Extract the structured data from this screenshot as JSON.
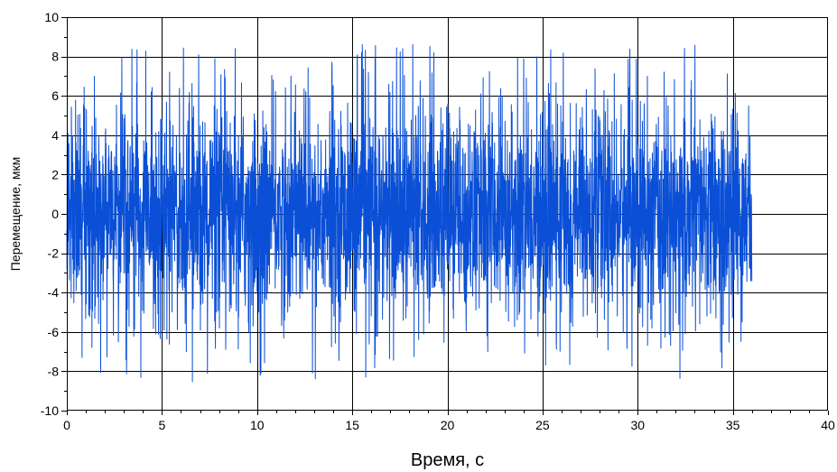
{
  "chart_data": {
    "type": "line",
    "title": "",
    "xlabel": "Время, с",
    "ylabel": "Перемещение, мкм",
    "xlim": [
      0,
      40
    ],
    "ylim": [
      -10,
      10
    ],
    "x_ticks": [
      "0",
      "5",
      "10",
      "15",
      "20",
      "25",
      "30",
      "35",
      "40"
    ],
    "y_ticks": [
      "10",
      "8",
      "6",
      "4",
      "2",
      "0",
      "-2",
      "-4",
      "-6",
      "-8",
      "-10"
    ],
    "grid": true,
    "legend": "none",
    "series": [
      {
        "color": "#0a4fd6",
        "x_range": [
          0,
          36
        ],
        "y_range": [
          -9.7,
          8.6
        ],
        "typical_amplitude": 4.5
      }
    ]
  }
}
